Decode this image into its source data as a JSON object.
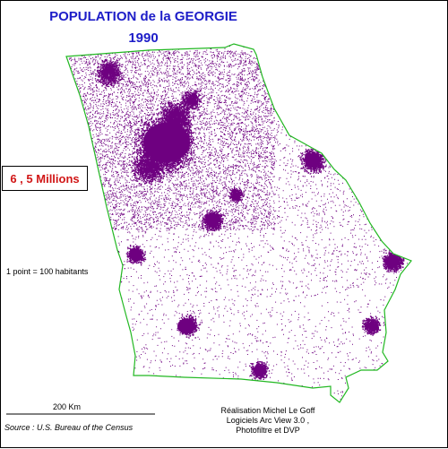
{
  "map": {
    "title_line1": "POPULATION de la GEORGIE",
    "title_line2": "1990",
    "total_population": "6 , 5 Millions",
    "legend": "1 point = 100 habitants",
    "scale_label": "200 Km",
    "source": "Source : U.S. Bureau of the Census",
    "credits": [
      "Réalisation Michel Le Goff",
      "Logiciels Arc View 3.0 ,",
      "Photofiltre et DVP"
    ]
  },
  "colors": {
    "dots": "#6e0080",
    "state_border": "#22b822",
    "title": "#1d1dc8",
    "total_population": "#d11616"
  }
}
